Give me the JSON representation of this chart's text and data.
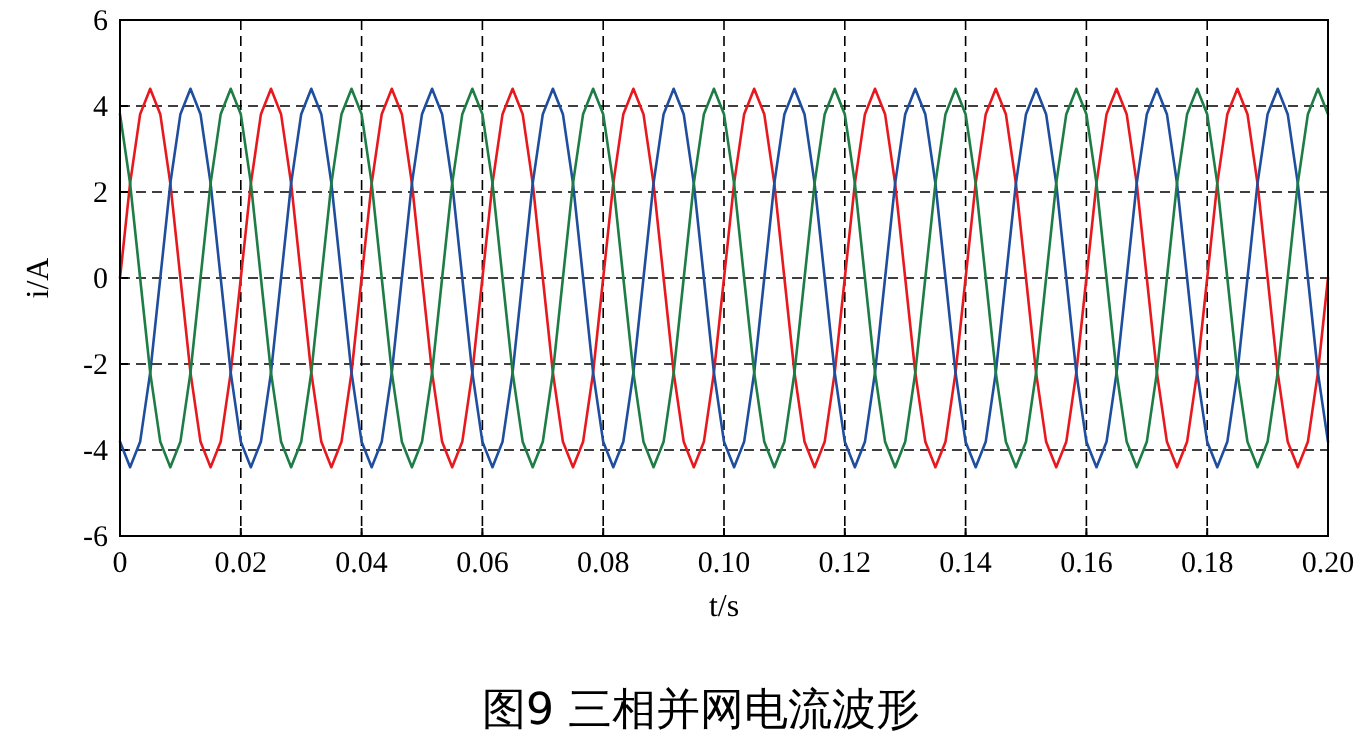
{
  "chart_data": {
    "type": "line",
    "title": "图9  三相并网电流波形",
    "xlabel": "t/s",
    "ylabel": "i/A",
    "x": [
      0,
      0.00167,
      0.00333,
      0.005,
      0.00667,
      0.00833,
      0.01,
      0.01167,
      0.01333,
      0.015,
      0.01667,
      0.01833,
      0.02,
      0.02167,
      0.02333,
      0.025,
      0.02667,
      0.02833,
      0.03,
      0.03167,
      0.03333,
      0.035,
      0.03667,
      0.03833,
      0.04,
      0.04167,
      0.04333,
      0.045,
      0.04667,
      0.04833,
      0.05,
      0.05167,
      0.05333,
      0.055,
      0.05667,
      0.05833,
      0.06,
      0.06167,
      0.06333,
      0.065,
      0.06667,
      0.06833,
      0.07,
      0.07167,
      0.07333,
      0.075,
      0.07667,
      0.07833,
      0.08,
      0.08167,
      0.08333,
      0.085,
      0.08667,
      0.08833,
      0.09,
      0.09167,
      0.09333,
      0.095,
      0.09667,
      0.09833,
      0.1,
      0.10167,
      0.10333,
      0.105,
      0.10667,
      0.10833,
      0.11,
      0.11167,
      0.11333,
      0.115,
      0.11667,
      0.11833,
      0.12,
      0.12167,
      0.12333,
      0.125,
      0.12667,
      0.12833,
      0.13,
      0.13167,
      0.13333,
      0.135,
      0.13667,
      0.13833,
      0.14,
      0.14167,
      0.14333,
      0.145,
      0.14667,
      0.14833,
      0.15,
      0.15167,
      0.15333,
      0.155,
      0.15667,
      0.15833,
      0.16,
      0.16167,
      0.16333,
      0.165,
      0.16667,
      0.16833,
      0.17,
      0.17167,
      0.17333,
      0.175,
      0.17667,
      0.17833,
      0.18,
      0.18167,
      0.18333,
      0.185,
      0.18667,
      0.18833,
      0.19,
      0.19167,
      0.19333,
      0.195,
      0.19667,
      0.19833,
      0.2
    ],
    "series": [
      {
        "color": "#e8191e",
        "values": [
          0,
          2.2,
          3.81,
          4.4,
          3.81,
          2.2,
          0,
          -2.2,
          -3.81,
          -4.4,
          -3.81,
          -2.2,
          0,
          2.2,
          3.81,
          4.4,
          3.81,
          2.2,
          0,
          -2.2,
          -3.81,
          -4.4,
          -3.81,
          -2.2,
          0,
          2.2,
          3.81,
          4.4,
          3.81,
          2.2,
          0,
          -2.2,
          -3.81,
          -4.4,
          -3.81,
          -2.2,
          0,
          2.2,
          3.81,
          4.4,
          3.81,
          2.2,
          0,
          -2.2,
          -3.81,
          -4.4,
          -3.81,
          -2.2,
          0,
          2.2,
          3.81,
          4.4,
          3.81,
          2.2,
          0,
          -2.2,
          -3.81,
          -4.4,
          -3.81,
          -2.2,
          0,
          2.2,
          3.81,
          4.4,
          3.81,
          2.2,
          0,
          -2.2,
          -3.81,
          -4.4,
          -3.81,
          -2.2,
          0,
          2.2,
          3.81,
          4.4,
          3.81,
          2.2,
          0,
          -2.2,
          -3.81,
          -4.4,
          -3.81,
          -2.2,
          0,
          2.2,
          3.81,
          4.4,
          3.81,
          2.2,
          0,
          -2.2,
          -3.81,
          -4.4,
          -3.81,
          -2.2,
          0,
          2.2,
          3.81,
          4.4,
          3.81,
          2.2,
          0,
          -2.2,
          -3.81,
          -4.4,
          -3.81,
          -2.2,
          0,
          2.2,
          3.81,
          4.4,
          3.81,
          2.2,
          0,
          -2.2,
          -3.81,
          -4.4,
          -3.81,
          -2.2,
          0
        ]
      },
      {
        "color": "#1f4e9e",
        "values": [
          -3.81,
          -4.4,
          -3.81,
          -2.2,
          0,
          2.2,
          3.81,
          4.4,
          3.81,
          2.2,
          0,
          -2.2,
          -3.81,
          -4.4,
          -3.81,
          -2.2,
          0,
          2.2,
          3.81,
          4.4,
          3.81,
          2.2,
          0,
          -2.2,
          -3.81,
          -4.4,
          -3.81,
          -2.2,
          0,
          2.2,
          3.81,
          4.4,
          3.81,
          2.2,
          0,
          -2.2,
          -3.81,
          -4.4,
          -3.81,
          -2.2,
          0,
          2.2,
          3.81,
          4.4,
          3.81,
          2.2,
          0,
          -2.2,
          -3.81,
          -4.4,
          -3.81,
          -2.2,
          0,
          2.2,
          3.81,
          4.4,
          3.81,
          2.2,
          0,
          -2.2,
          -3.81,
          -4.4,
          -3.81,
          -2.2,
          0,
          2.2,
          3.81,
          4.4,
          3.81,
          2.2,
          0,
          -2.2,
          -3.81,
          -4.4,
          -3.81,
          -2.2,
          0,
          2.2,
          3.81,
          4.4,
          3.81,
          2.2,
          0,
          -2.2,
          -3.81,
          -4.4,
          -3.81,
          -2.2,
          0,
          2.2,
          3.81,
          4.4,
          3.81,
          2.2,
          0,
          -2.2,
          -3.81,
          -4.4,
          -3.81,
          -2.2,
          0,
          2.2,
          3.81,
          4.4,
          3.81,
          2.2,
          0,
          -2.2,
          -3.81,
          -4.4,
          -3.81,
          -2.2,
          0,
          2.2,
          3.81,
          4.4,
          3.81,
          2.2,
          0,
          -2.2,
          -3.81
        ]
      },
      {
        "color": "#1e7d45",
        "values": [
          3.81,
          2.2,
          0,
          -2.2,
          -3.81,
          -4.4,
          -3.81,
          -2.2,
          0,
          2.2,
          3.81,
          4.4,
          3.81,
          2.2,
          0,
          -2.2,
          -3.81,
          -4.4,
          -3.81,
          -2.2,
          0,
          2.2,
          3.81,
          4.4,
          3.81,
          2.2,
          0,
          -2.2,
          -3.81,
          -4.4,
          -3.81,
          -2.2,
          0,
          2.2,
          3.81,
          4.4,
          3.81,
          2.2,
          0,
          -2.2,
          -3.81,
          -4.4,
          -3.81,
          -2.2,
          0,
          2.2,
          3.81,
          4.4,
          3.81,
          2.2,
          0,
          -2.2,
          -3.81,
          -4.4,
          -3.81,
          -2.2,
          0,
          2.2,
          3.81,
          4.4,
          3.81,
          2.2,
          0,
          -2.2,
          -3.81,
          -4.4,
          -3.81,
          -2.2,
          0,
          2.2,
          3.81,
          4.4,
          3.81,
          2.2,
          0,
          -2.2,
          -3.81,
          -4.4,
          -3.81,
          -2.2,
          0,
          2.2,
          3.81,
          4.4,
          3.81,
          2.2,
          0,
          -2.2,
          -3.81,
          -4.4,
          -3.81,
          -2.2,
          0,
          2.2,
          3.81,
          4.4,
          3.81,
          2.2,
          0,
          -2.2,
          -3.81,
          -4.4,
          -3.81,
          -2.2,
          0,
          2.2,
          3.81,
          4.4,
          3.81,
          2.2,
          0,
          -2.2,
          -3.81,
          -4.4,
          -3.81,
          -2.2,
          0,
          2.2,
          3.81,
          4.4,
          3.81
        ]
      }
    ],
    "xlim": [
      0,
      0.2
    ],
    "ylim": [
      -6,
      6
    ],
    "xticks": [
      0,
      0.02,
      0.04,
      0.06,
      0.08,
      {
        "value": 0.1,
        "label": "0.10"
      },
      0.12,
      0.14,
      0.16,
      0.18,
      {
        "value": 0.2,
        "label": "0.20"
      }
    ],
    "yticks": [
      -6,
      -4,
      -2,
      0,
      2,
      4,
      6
    ],
    "grid": true
  }
}
